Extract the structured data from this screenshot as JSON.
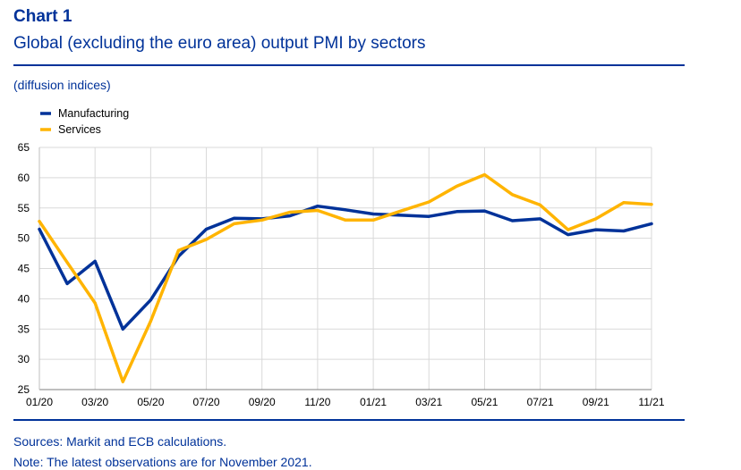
{
  "header": {
    "label": "Chart 1",
    "title": "Global (excluding the euro area) output PMI by sectors",
    "unit": "(diffusion indices)"
  },
  "footer": {
    "sources": "Sources: Markit and ECB calculations.",
    "note": "Note: The latest observations are for November 2021."
  },
  "chart_data": {
    "type": "line",
    "title": "Global (excluding the euro area) output PMI by sectors",
    "xlabel": "",
    "ylabel": "(diffusion indices)",
    "ylim": [
      25,
      65
    ],
    "yticks": [
      25,
      30,
      35,
      40,
      45,
      50,
      55,
      60,
      65
    ],
    "grid": true,
    "legend_position": "top-left",
    "x": [
      "01/20",
      "02/20",
      "03/20",
      "04/20",
      "05/20",
      "06/20",
      "07/20",
      "08/20",
      "09/20",
      "10/20",
      "11/20",
      "12/20",
      "01/21",
      "02/21",
      "03/21",
      "04/21",
      "05/21",
      "06/21",
      "07/21",
      "08/21",
      "09/21",
      "10/21",
      "11/21"
    ],
    "xtick_labels": [
      "01/20",
      "03/20",
      "05/20",
      "07/20",
      "09/20",
      "11/20",
      "01/21",
      "03/21",
      "05/21",
      "07/21",
      "09/21",
      "11/21"
    ],
    "series": [
      {
        "name": "Manufacturing",
        "color": "#003299",
        "values": [
          51.5,
          42.5,
          46.2,
          35.0,
          39.8,
          47.0,
          51.5,
          53.3,
          53.2,
          53.7,
          55.3,
          54.7,
          54.0,
          53.8,
          53.6,
          54.4,
          54.5,
          52.9,
          53.2,
          50.6,
          51.4,
          51.2,
          52.4
        ]
      },
      {
        "name": "Services",
        "color": "#FFB400",
        "values": [
          52.8,
          46.0,
          39.3,
          26.3,
          36.3,
          48.0,
          49.8,
          52.4,
          53.0,
          54.3,
          54.6,
          53.0,
          53.0,
          54.5,
          56.0,
          58.6,
          60.5,
          57.2,
          55.5,
          51.4,
          53.2,
          55.9,
          55.6
        ]
      }
    ]
  }
}
